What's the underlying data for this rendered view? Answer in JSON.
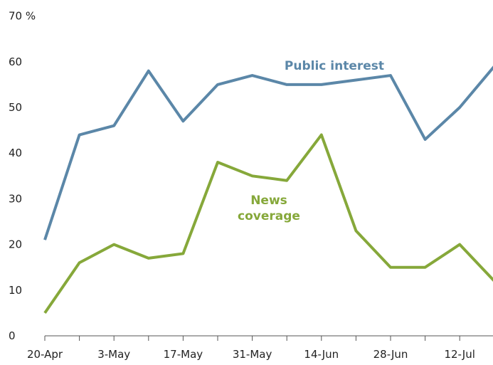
{
  "chart_data": {
    "type": "line",
    "title": "",
    "xlabel": "",
    "ylabel": "",
    "ylim": [
      0,
      70
    ],
    "yticks": [
      "0",
      "10",
      "20",
      "30",
      "40",
      "50",
      "60",
      "70 %"
    ],
    "categories": [
      "20-Apr",
      "",
      "3-May",
      "",
      "17-May",
      "",
      "31-May",
      "",
      "14-Jun",
      "",
      "28-Jun",
      "",
      "12-Jul",
      ""
    ],
    "grid": false,
    "series": [
      {
        "name": "Public interest",
        "color": "#5b87a8",
        "label_lines": [
          "Public interest"
        ],
        "values": [
          21,
          44,
          46,
          58,
          47,
          55,
          57,
          55,
          55,
          56,
          57,
          43,
          50,
          59
        ]
      },
      {
        "name": "News coverage",
        "color": "#86a83a",
        "label_lines": [
          "News",
          "coverage"
        ],
        "values": [
          5,
          16,
          20,
          17,
          18,
          38,
          35,
          34,
          44,
          23,
          15,
          15,
          20,
          12
        ]
      }
    ]
  }
}
